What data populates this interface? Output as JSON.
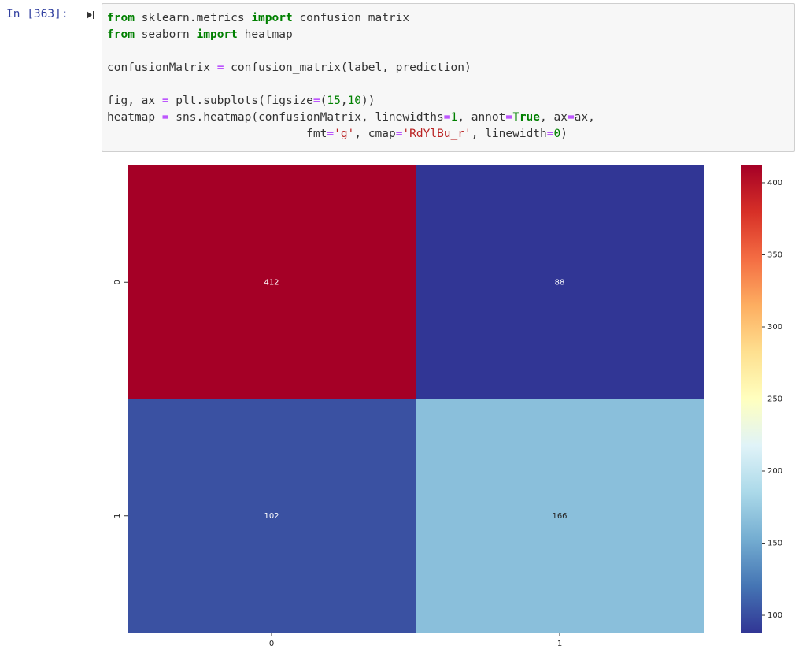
{
  "cell": {
    "prompt": "In [363]:",
    "code": [
      [
        {
          "text": "from",
          "color": "#008000",
          "weight": "bold"
        },
        {
          "text": " sklearn.metrics ",
          "color": "#333333"
        },
        {
          "text": "import",
          "color": "#008000",
          "weight": "bold"
        },
        {
          "text": " confusion_matrix",
          "color": "#333333"
        }
      ],
      [
        {
          "text": "from",
          "color": "#008000",
          "weight": "bold"
        },
        {
          "text": " seaborn ",
          "color": "#333333"
        },
        {
          "text": "import",
          "color": "#008000",
          "weight": "bold"
        },
        {
          "text": " heatmap",
          "color": "#333333"
        }
      ],
      [],
      [
        {
          "text": "confusionMatrix ",
          "color": "#333333"
        },
        {
          "text": "=",
          "color": "#aa22ff"
        },
        {
          "text": " confusion_matrix(label, prediction)",
          "color": "#333333"
        }
      ],
      [],
      [
        {
          "text": "fig, ax ",
          "color": "#333333"
        },
        {
          "text": "=",
          "color": "#aa22ff"
        },
        {
          "text": " plt.subplots(figsize",
          "color": "#333333"
        },
        {
          "text": "=",
          "color": "#aa22ff"
        },
        {
          "text": "(",
          "color": "#333333"
        },
        {
          "text": "15",
          "color": "#008000"
        },
        {
          "text": ",",
          "color": "#333333"
        },
        {
          "text": "10",
          "color": "#008000"
        },
        {
          "text": "))",
          "color": "#333333"
        }
      ],
      [
        {
          "text": "heatmap ",
          "color": "#333333"
        },
        {
          "text": "=",
          "color": "#aa22ff"
        },
        {
          "text": " sns.heatmap(confusionMatrix, linewidths",
          "color": "#333333"
        },
        {
          "text": "=",
          "color": "#aa22ff"
        },
        {
          "text": "1",
          "color": "#008000"
        },
        {
          "text": ", annot",
          "color": "#333333"
        },
        {
          "text": "=",
          "color": "#aa22ff"
        },
        {
          "text": "True",
          "color": "#008000",
          "weight": "bold"
        },
        {
          "text": ", ax",
          "color": "#333333"
        },
        {
          "text": "=",
          "color": "#aa22ff"
        },
        {
          "text": "ax,",
          "color": "#333333"
        }
      ],
      [
        {
          "text": "                             fmt",
          "color": "#333333"
        },
        {
          "text": "=",
          "color": "#aa22ff"
        },
        {
          "text": "'g'",
          "color": "#ba2121"
        },
        {
          "text": ", cmap",
          "color": "#333333"
        },
        {
          "text": "=",
          "color": "#aa22ff"
        },
        {
          "text": "'RdYlBu_r'",
          "color": "#ba2121"
        },
        {
          "text": ", linewidth",
          "color": "#333333"
        },
        {
          "text": "=",
          "color": "#aa22ff"
        },
        {
          "text": "0",
          "color": "#008000"
        },
        {
          "text": ")",
          "color": "#333333"
        }
      ]
    ]
  },
  "chart_data": {
    "type": "heatmap",
    "categories": [
      "0",
      "1"
    ],
    "y_categories": [
      "0",
      "1"
    ],
    "values": [
      [
        412,
        88
      ],
      [
        102,
        166
      ]
    ],
    "clim": [
      88,
      412
    ],
    "colorbar_ticks": [
      100,
      150,
      200,
      250,
      300,
      350,
      400
    ],
    "colormap": [
      "#313695",
      "#4575b4",
      "#74add1",
      "#abd9e9",
      "#e0f3f8",
      "#ffffbf",
      "#fee090",
      "#fdae61",
      "#f46d43",
      "#d73027",
      "#a50026"
    ]
  }
}
